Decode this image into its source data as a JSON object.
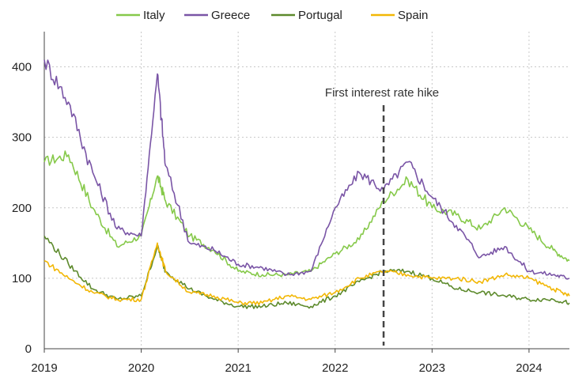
{
  "chart_data": {
    "type": "line",
    "title": "",
    "xlabel": "",
    "ylabel": "",
    "x_ticks": [
      "2019",
      "2020",
      "2021",
      "2022",
      "2023",
      "2024"
    ],
    "x_range": [
      "2019-01",
      "2024-06"
    ],
    "y_ticks": [
      "0",
      "100",
      "200",
      "300",
      "400"
    ],
    "ylim": [
      0,
      450
    ],
    "grid": "dotted, vertical and horizontal",
    "legend_position": "top",
    "annotation": {
      "label": "First interest rate hike",
      "x": "2022-07"
    },
    "colors": {
      "Italy": "#86c94a",
      "Greece": "#7a55a6",
      "Portugal": "#5d8a2c",
      "Spain": "#f2b705"
    },
    "x": [
      "2019-01",
      "2019-04",
      "2019-07",
      "2019-10",
      "2020-01",
      "2020-03",
      "2020-04",
      "2020-07",
      "2020-10",
      "2021-01",
      "2021-04",
      "2021-07",
      "2021-10",
      "2022-01",
      "2022-04",
      "2022-07",
      "2022-10",
      "2023-01",
      "2023-04",
      "2023-07",
      "2023-10",
      "2024-01",
      "2024-04",
      "2024-06"
    ],
    "series": [
      {
        "name": "Italy",
        "values": [
          265,
          275,
          200,
          145,
          160,
          245,
          210,
          160,
          140,
          110,
          105,
          105,
          110,
          135,
          155,
          210,
          240,
          200,
          190,
          170,
          200,
          170,
          140,
          125
        ]
      },
      {
        "name": "Greece",
        "values": [
          410,
          350,
          250,
          170,
          160,
          390,
          260,
          150,
          140,
          120,
          115,
          105,
          110,
          200,
          250,
          225,
          265,
          215,
          175,
          130,
          145,
          110,
          105,
          100
        ]
      },
      {
        "name": "Portugal",
        "values": [
          160,
          120,
          85,
          70,
          75,
          145,
          110,
          85,
          70,
          60,
          60,
          65,
          60,
          75,
          95,
          110,
          110,
          100,
          85,
          80,
          75,
          70,
          70,
          65
        ]
      },
      {
        "name": "Spain",
        "values": [
          125,
          100,
          80,
          70,
          70,
          150,
          110,
          80,
          75,
          65,
          65,
          75,
          70,
          80,
          100,
          110,
          105,
          100,
          100,
          95,
          105,
          100,
          85,
          75
        ]
      }
    ]
  }
}
